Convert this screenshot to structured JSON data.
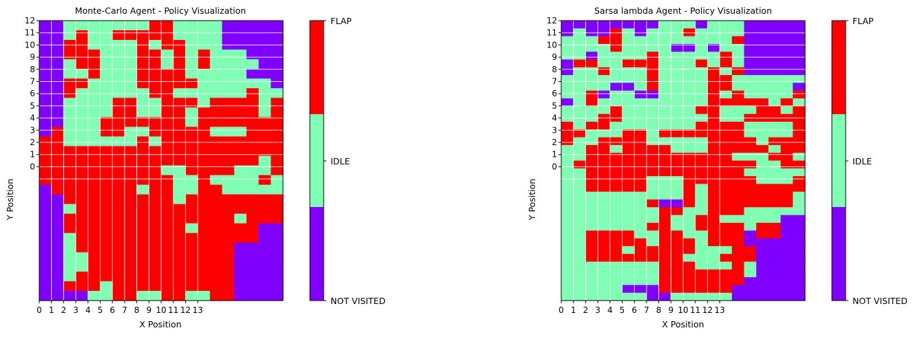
{
  "colors": {
    "not_visited": "#8000ff",
    "idle": "#80ffb4",
    "flap": "#ff0000",
    "grid": "#ffffff",
    "axis": "#000000"
  },
  "chart_data": [
    {
      "type": "heatmap",
      "title": "Monte-Carlo Agent - Policy Visualization",
      "xlabel": "X Position",
      "ylabel": "Y Position",
      "x_ticks": [
        "0",
        "1",
        "2",
        "3",
        "4",
        "5",
        "6",
        "7",
        "8",
        "9",
        "10",
        "11",
        "12",
        "13"
      ],
      "y_ticks": [
        "12",
        "11",
        "10",
        "9",
        "8",
        "7",
        "6",
        "5",
        "4",
        "3",
        "2",
        "1",
        "0"
      ],
      "grid": true,
      "colorbar": {
        "levels": [
          "NOT VISITED",
          "IDLE",
          "FLAP"
        ]
      },
      "values": [
        [
          0,
          0,
          1,
          1,
          1,
          1,
          1,
          1,
          1,
          2,
          2,
          1,
          1,
          1,
          1,
          0,
          0,
          0,
          0,
          0
        ],
        [
          0,
          0,
          1,
          2,
          1,
          1,
          2,
          2,
          2,
          2,
          2,
          1,
          1,
          1,
          1,
          0,
          0,
          0,
          0,
          0
        ],
        [
          0,
          0,
          2,
          2,
          1,
          1,
          1,
          1,
          2,
          1,
          2,
          2,
          1,
          1,
          1,
          0,
          0,
          0,
          0,
          0
        ],
        [
          0,
          0,
          2,
          2,
          2,
          1,
          1,
          1,
          2,
          2,
          1,
          2,
          1,
          2,
          1,
          1,
          1,
          0,
          0,
          0
        ],
        [
          0,
          0,
          1,
          2,
          2,
          1,
          1,
          1,
          2,
          2,
          1,
          2,
          1,
          2,
          1,
          1,
          1,
          1,
          0,
          0
        ],
        [
          0,
          0,
          1,
          1,
          2,
          1,
          1,
          1,
          2,
          2,
          2,
          2,
          1,
          1,
          1,
          1,
          1,
          0,
          0,
          0
        ],
        [
          0,
          0,
          2,
          2,
          1,
          1,
          1,
          1,
          2,
          2,
          2,
          2,
          2,
          1,
          1,
          1,
          1,
          1,
          1,
          0
        ],
        [
          0,
          0,
          2,
          1,
          1,
          1,
          1,
          1,
          1,
          2,
          2,
          1,
          1,
          1,
          1,
          1,
          1,
          2,
          1,
          1
        ],
        [
          0,
          0,
          1,
          1,
          1,
          1,
          2,
          2,
          1,
          1,
          2,
          2,
          2,
          1,
          2,
          2,
          2,
          2,
          1,
          2
        ],
        [
          0,
          0,
          1,
          1,
          1,
          1,
          2,
          2,
          1,
          1,
          2,
          2,
          1,
          2,
          2,
          2,
          2,
          2,
          1,
          2
        ],
        [
          0,
          0,
          1,
          1,
          1,
          2,
          2,
          2,
          2,
          2,
          2,
          2,
          1,
          2,
          2,
          2,
          2,
          2,
          2,
          2
        ],
        [
          0,
          2,
          1,
          1,
          1,
          2,
          2,
          1,
          1,
          2,
          2,
          2,
          2,
          2,
          1,
          1,
          1,
          2,
          2,
          2
        ],
        [
          2,
          2,
          1,
          1,
          1,
          1,
          1,
          1,
          2,
          1,
          2,
          2,
          2,
          2,
          2,
          2,
          2,
          2,
          2,
          2
        ],
        [
          2,
          2,
          2,
          2,
          2,
          2,
          2,
          2,
          2,
          2,
          2,
          2,
          2,
          2,
          2,
          2,
          2,
          2,
          2,
          2
        ],
        [
          2,
          2,
          2,
          2,
          2,
          2,
          2,
          2,
          2,
          2,
          2,
          2,
          2,
          2,
          2,
          2,
          2,
          2,
          1,
          2
        ],
        [
          2,
          2,
          2,
          2,
          2,
          2,
          2,
          2,
          2,
          2,
          1,
          1,
          2,
          2,
          2,
          2,
          1,
          1,
          1,
          2
        ],
        [
          2,
          2,
          2,
          2,
          2,
          2,
          2,
          2,
          2,
          2,
          2,
          1,
          1,
          2,
          1,
          1,
          1,
          1,
          2,
          1
        ],
        [
          0,
          2,
          2,
          2,
          2,
          2,
          2,
          2,
          1,
          2,
          2,
          1,
          1,
          2,
          2,
          1,
          1,
          1,
          1,
          1
        ],
        [
          0,
          0,
          2,
          2,
          2,
          2,
          2,
          2,
          2,
          2,
          2,
          1,
          2,
          2,
          2,
          2,
          2,
          2,
          2,
          2
        ],
        [
          0,
          0,
          1,
          2,
          2,
          2,
          2,
          2,
          2,
          2,
          2,
          2,
          2,
          2,
          2,
          2,
          2,
          2,
          2,
          2
        ],
        [
          0,
          0,
          2,
          2,
          2,
          2,
          2,
          2,
          2,
          2,
          2,
          2,
          2,
          2,
          2,
          2,
          1,
          2,
          2,
          2
        ],
        [
          0,
          0,
          2,
          2,
          2,
          2,
          2,
          2,
          2,
          2,
          2,
          2,
          1,
          2,
          2,
          2,
          2,
          2,
          0,
          0
        ],
        [
          0,
          0,
          1,
          2,
          2,
          2,
          2,
          2,
          2,
          2,
          2,
          2,
          2,
          2,
          2,
          2,
          2,
          2,
          0,
          0
        ],
        [
          0,
          0,
          1,
          2,
          2,
          2,
          2,
          2,
          2,
          2,
          2,
          2,
          2,
          2,
          2,
          2,
          0,
          0,
          0,
          0
        ],
        [
          0,
          0,
          1,
          1,
          2,
          2,
          2,
          2,
          2,
          2,
          2,
          2,
          2,
          2,
          2,
          2,
          0,
          0,
          0,
          0
        ],
        [
          0,
          0,
          1,
          1,
          2,
          2,
          2,
          2,
          2,
          2,
          2,
          2,
          2,
          2,
          2,
          2,
          0,
          0,
          0,
          0
        ],
        [
          0,
          0,
          1,
          2,
          2,
          2,
          2,
          2,
          2,
          2,
          2,
          2,
          2,
          2,
          2,
          2,
          0,
          0,
          0,
          0
        ],
        [
          0,
          0,
          2,
          2,
          2,
          1,
          2,
          2,
          2,
          2,
          2,
          2,
          2,
          2,
          2,
          2,
          0,
          0,
          0,
          0
        ],
        [
          0,
          0,
          0,
          0,
          1,
          1,
          2,
          2,
          1,
          1,
          2,
          2,
          1,
          1,
          2,
          2,
          0,
          0,
          0,
          0
        ]
      ]
    },
    {
      "type": "heatmap",
      "title": "Sarsa lambda Agent - Policy Visualization",
      "xlabel": "X Position",
      "ylabel": "Y Position",
      "x_ticks": [
        "0",
        "1",
        "2",
        "3",
        "4",
        "5",
        "6",
        "7",
        "8",
        "9",
        "10",
        "11",
        "12",
        "13"
      ],
      "y_ticks": [
        "12",
        "11",
        "10",
        "9",
        "8",
        "7",
        "6",
        "5",
        "4",
        "3",
        "2",
        "1",
        "0"
      ],
      "grid": true,
      "colorbar": {
        "levels": [
          "NOT VISITED",
          "IDLE",
          "FLAP"
        ]
      },
      "values": [
        [
          0,
          0,
          0,
          0,
          0,
          0,
          0,
          0,
          1,
          1,
          1,
          0,
          1,
          1,
          1,
          0,
          0,
          0,
          0,
          0
        ],
        [
          0,
          1,
          0,
          0,
          2,
          1,
          0,
          1,
          1,
          1,
          2,
          1,
          1,
          1,
          1,
          0,
          0,
          0,
          0,
          0
        ],
        [
          1,
          1,
          1,
          2,
          2,
          1,
          1,
          1,
          1,
          1,
          1,
          1,
          1,
          1,
          2,
          0,
          0,
          0,
          0,
          0
        ],
        [
          1,
          1,
          1,
          1,
          2,
          1,
          1,
          1,
          1,
          0,
          0,
          1,
          0,
          1,
          1,
          0,
          0,
          0,
          0,
          0
        ],
        [
          1,
          1,
          0,
          1,
          1,
          1,
          1,
          2,
          1,
          1,
          1,
          1,
          1,
          2,
          1,
          0,
          0,
          0,
          0,
          0
        ],
        [
          0,
          2,
          2,
          1,
          1,
          2,
          2,
          2,
          1,
          1,
          1,
          2,
          1,
          2,
          1,
          0,
          0,
          0,
          0,
          0
        ],
        [
          0,
          1,
          1,
          2,
          1,
          1,
          1,
          2,
          1,
          1,
          1,
          1,
          2,
          1,
          2,
          0,
          0,
          0,
          0,
          0
        ],
        [
          1,
          1,
          1,
          1,
          1,
          1,
          1,
          2,
          1,
          1,
          1,
          1,
          2,
          2,
          1,
          1,
          1,
          1,
          1,
          1
        ],
        [
          1,
          1,
          1,
          1,
          0,
          0,
          1,
          2,
          1,
          1,
          1,
          1,
          2,
          2,
          1,
          1,
          1,
          1,
          1,
          0
        ],
        [
          1,
          1,
          2,
          0,
          1,
          1,
          0,
          0,
          1,
          1,
          1,
          1,
          2,
          1,
          2,
          1,
          1,
          1,
          1,
          2
        ],
        [
          0,
          1,
          2,
          1,
          1,
          1,
          1,
          1,
          1,
          1,
          1,
          1,
          2,
          2,
          2,
          2,
          2,
          1,
          2,
          1
        ],
        [
          1,
          1,
          1,
          1,
          2,
          1,
          1,
          1,
          1,
          1,
          1,
          2,
          2,
          1,
          1,
          1,
          2,
          2,
          1,
          2
        ],
        [
          1,
          1,
          1,
          2,
          2,
          1,
          1,
          1,
          1,
          1,
          1,
          1,
          2,
          1,
          1,
          2,
          2,
          2,
          2,
          2
        ],
        [
          2,
          1,
          2,
          2,
          1,
          1,
          1,
          1,
          1,
          1,
          1,
          2,
          2,
          2,
          2,
          1,
          1,
          1,
          1,
          2
        ],
        [
          2,
          2,
          1,
          1,
          1,
          2,
          2,
          1,
          2,
          2,
          2,
          2,
          2,
          2,
          2,
          1,
          1,
          1,
          1,
          2
        ],
        [
          2,
          1,
          1,
          2,
          2,
          2,
          2,
          1,
          1,
          1,
          1,
          1,
          2,
          2,
          2,
          2,
          1,
          2,
          2,
          2
        ],
        [
          1,
          1,
          2,
          2,
          1,
          2,
          2,
          2,
          2,
          1,
          1,
          1,
          2,
          2,
          2,
          2,
          2,
          1,
          2,
          2
        ],
        [
          1,
          1,
          2,
          2,
          2,
          2,
          2,
          2,
          2,
          2,
          2,
          2,
          2,
          2,
          1,
          1,
          1,
          2,
          2,
          1
        ],
        [
          1,
          2,
          2,
          2,
          2,
          2,
          2,
          2,
          2,
          2,
          2,
          2,
          2,
          2,
          2,
          2,
          1,
          1,
          2,
          2
        ],
        [
          1,
          1,
          2,
          2,
          2,
          2,
          2,
          2,
          2,
          2,
          2,
          2,
          2,
          2,
          2,
          1,
          1,
          1,
          1,
          1
        ],
        [
          1,
          1,
          2,
          2,
          2,
          2,
          2,
          1,
          1,
          1,
          2,
          2,
          2,
          2,
          2,
          2,
          1,
          1,
          1,
          2
        ],
        [
          1,
          1,
          2,
          2,
          2,
          2,
          2,
          1,
          1,
          1,
          2,
          1,
          2,
          2,
          2,
          2,
          2,
          2,
          2,
          2
        ],
        [
          1,
          1,
          1,
          1,
          1,
          1,
          1,
          1,
          1,
          1,
          2,
          1,
          2,
          2,
          2,
          2,
          2,
          2,
          2,
          1
        ],
        [
          1,
          1,
          1,
          1,
          1,
          1,
          1,
          2,
          0,
          0,
          2,
          1,
          2,
          2,
          2,
          2,
          2,
          2,
          2,
          1
        ],
        [
          1,
          1,
          1,
          1,
          1,
          1,
          1,
          1,
          2,
          2,
          1,
          1,
          2,
          2,
          2,
          1,
          1,
          1,
          1,
          1
        ],
        [
          1,
          1,
          1,
          1,
          1,
          1,
          1,
          1,
          2,
          1,
          1,
          2,
          2,
          1,
          1,
          1,
          1,
          1,
          0,
          0
        ],
        [
          1,
          1,
          1,
          1,
          1,
          1,
          1,
          2,
          2,
          1,
          1,
          2,
          2,
          2,
          2,
          1,
          2,
          2,
          0,
          0
        ],
        [
          1,
          1,
          2,
          2,
          2,
          2,
          1,
          1,
          2,
          2,
          1,
          1,
          2,
          2,
          2,
          0,
          2,
          2,
          0,
          0
        ],
        [
          1,
          1,
          2,
          2,
          2,
          2,
          2,
          1,
          2,
          2,
          2,
          1,
          2,
          2,
          2,
          0,
          0,
          0,
          0,
          0
        ],
        [
          1,
          1,
          2,
          2,
          2,
          1,
          2,
          2,
          2,
          2,
          2,
          1,
          1,
          1,
          2,
          2,
          0,
          0,
          0,
          0
        ],
        [
          1,
          1,
          2,
          2,
          2,
          2,
          2,
          2,
          2,
          2,
          1,
          1,
          1,
          2,
          2,
          2,
          0,
          0,
          0,
          0
        ],
        [
          1,
          1,
          1,
          1,
          1,
          1,
          1,
          1,
          2,
          2,
          2,
          1,
          1,
          1,
          2,
          1,
          0,
          0,
          0,
          0
        ],
        [
          1,
          1,
          1,
          1,
          1,
          1,
          1,
          1,
          2,
          2,
          2,
          2,
          2,
          2,
          2,
          1,
          0,
          0,
          0,
          0
        ],
        [
          1,
          1,
          1,
          1,
          1,
          1,
          1,
          1,
          2,
          2,
          2,
          2,
          2,
          2,
          2,
          0,
          0,
          0,
          0,
          0
        ],
        [
          1,
          1,
          1,
          1,
          1,
          0,
          0,
          0,
          2,
          2,
          2,
          2,
          2,
          2,
          0,
          0,
          0,
          0,
          0,
          0
        ],
        [
          1,
          1,
          1,
          1,
          1,
          1,
          1,
          0,
          0,
          1,
          1,
          1,
          1,
          1,
          0,
          0,
          0,
          0,
          0,
          0
        ]
      ]
    }
  ]
}
